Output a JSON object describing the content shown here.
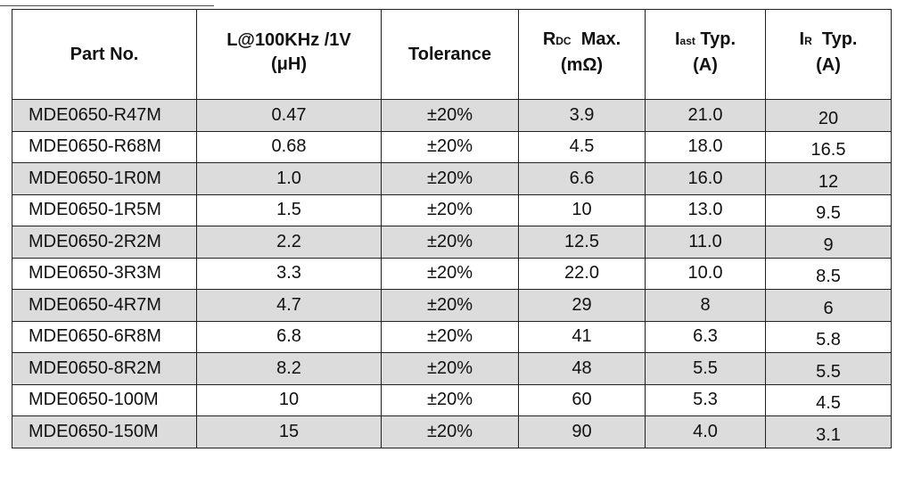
{
  "table": {
    "headers": {
      "part": "Part No.",
      "inductance_line1": "L@100KHz /1V",
      "inductance_line2": "(μH)",
      "tolerance": "Tolerance",
      "rdc_main": "R",
      "rdc_sub": "DC",
      "rdc_rest": "  Max.",
      "rdc_unit": "(mΩ)",
      "isat_main": "I",
      "isat_sub": "ast",
      "isat_rest": " Typ.",
      "isat_unit": "(A)",
      "ir_main": "I",
      "ir_sub": "R",
      "ir_rest": "  Typ.",
      "ir_unit": "(A)"
    },
    "rows": [
      {
        "part": "MDE0650-R47M",
        "inductance": "0.47",
        "tolerance": "±20%",
        "rdc": "3.9",
        "isat": "21.0",
        "ir": "20"
      },
      {
        "part": "MDE0650-R68M",
        "inductance": "0.68",
        "tolerance": "±20%",
        "rdc": "4.5",
        "isat": "18.0",
        "ir": "16.5"
      },
      {
        "part": "MDE0650-1R0M",
        "inductance": "1.0",
        "tolerance": "±20%",
        "rdc": "6.6",
        "isat": "16.0",
        "ir": "12"
      },
      {
        "part": "MDE0650-1R5M",
        "inductance": "1.5",
        "tolerance": "±20%",
        "rdc": "10",
        "isat": "13.0",
        "ir": "9.5"
      },
      {
        "part": "MDE0650-2R2M",
        "inductance": "2.2",
        "tolerance": "±20%",
        "rdc": "12.5",
        "isat": "11.0",
        "ir": "9"
      },
      {
        "part": "MDE0650-3R3M",
        "inductance": "3.3",
        "tolerance": "±20%",
        "rdc": "22.0",
        "isat": "10.0",
        "ir": "8.5"
      },
      {
        "part": "MDE0650-4R7M",
        "inductance": "4.7",
        "tolerance": "±20%",
        "rdc": "29",
        "isat": "8",
        "ir": "6"
      },
      {
        "part": "MDE0650-6R8M",
        "inductance": "6.8",
        "tolerance": "±20%",
        "rdc": "41",
        "isat": "6.3",
        "ir": "5.8"
      },
      {
        "part": "MDE0650-8R2M",
        "inductance": "8.2",
        "tolerance": "±20%",
        "rdc": "48",
        "isat": "5.5",
        "ir": "5.5"
      },
      {
        "part": "MDE0650-100M",
        "inductance": "10",
        "tolerance": "±20%",
        "rdc": "60",
        "isat": "5.3",
        "ir": "4.5"
      },
      {
        "part": "MDE0650-150M",
        "inductance": "15",
        "tolerance": "±20%",
        "rdc": "90",
        "isat": "4.0",
        "ir": "3.1"
      }
    ],
    "row_shading_color": "#dcdcdc",
    "border_color": "#222222"
  }
}
